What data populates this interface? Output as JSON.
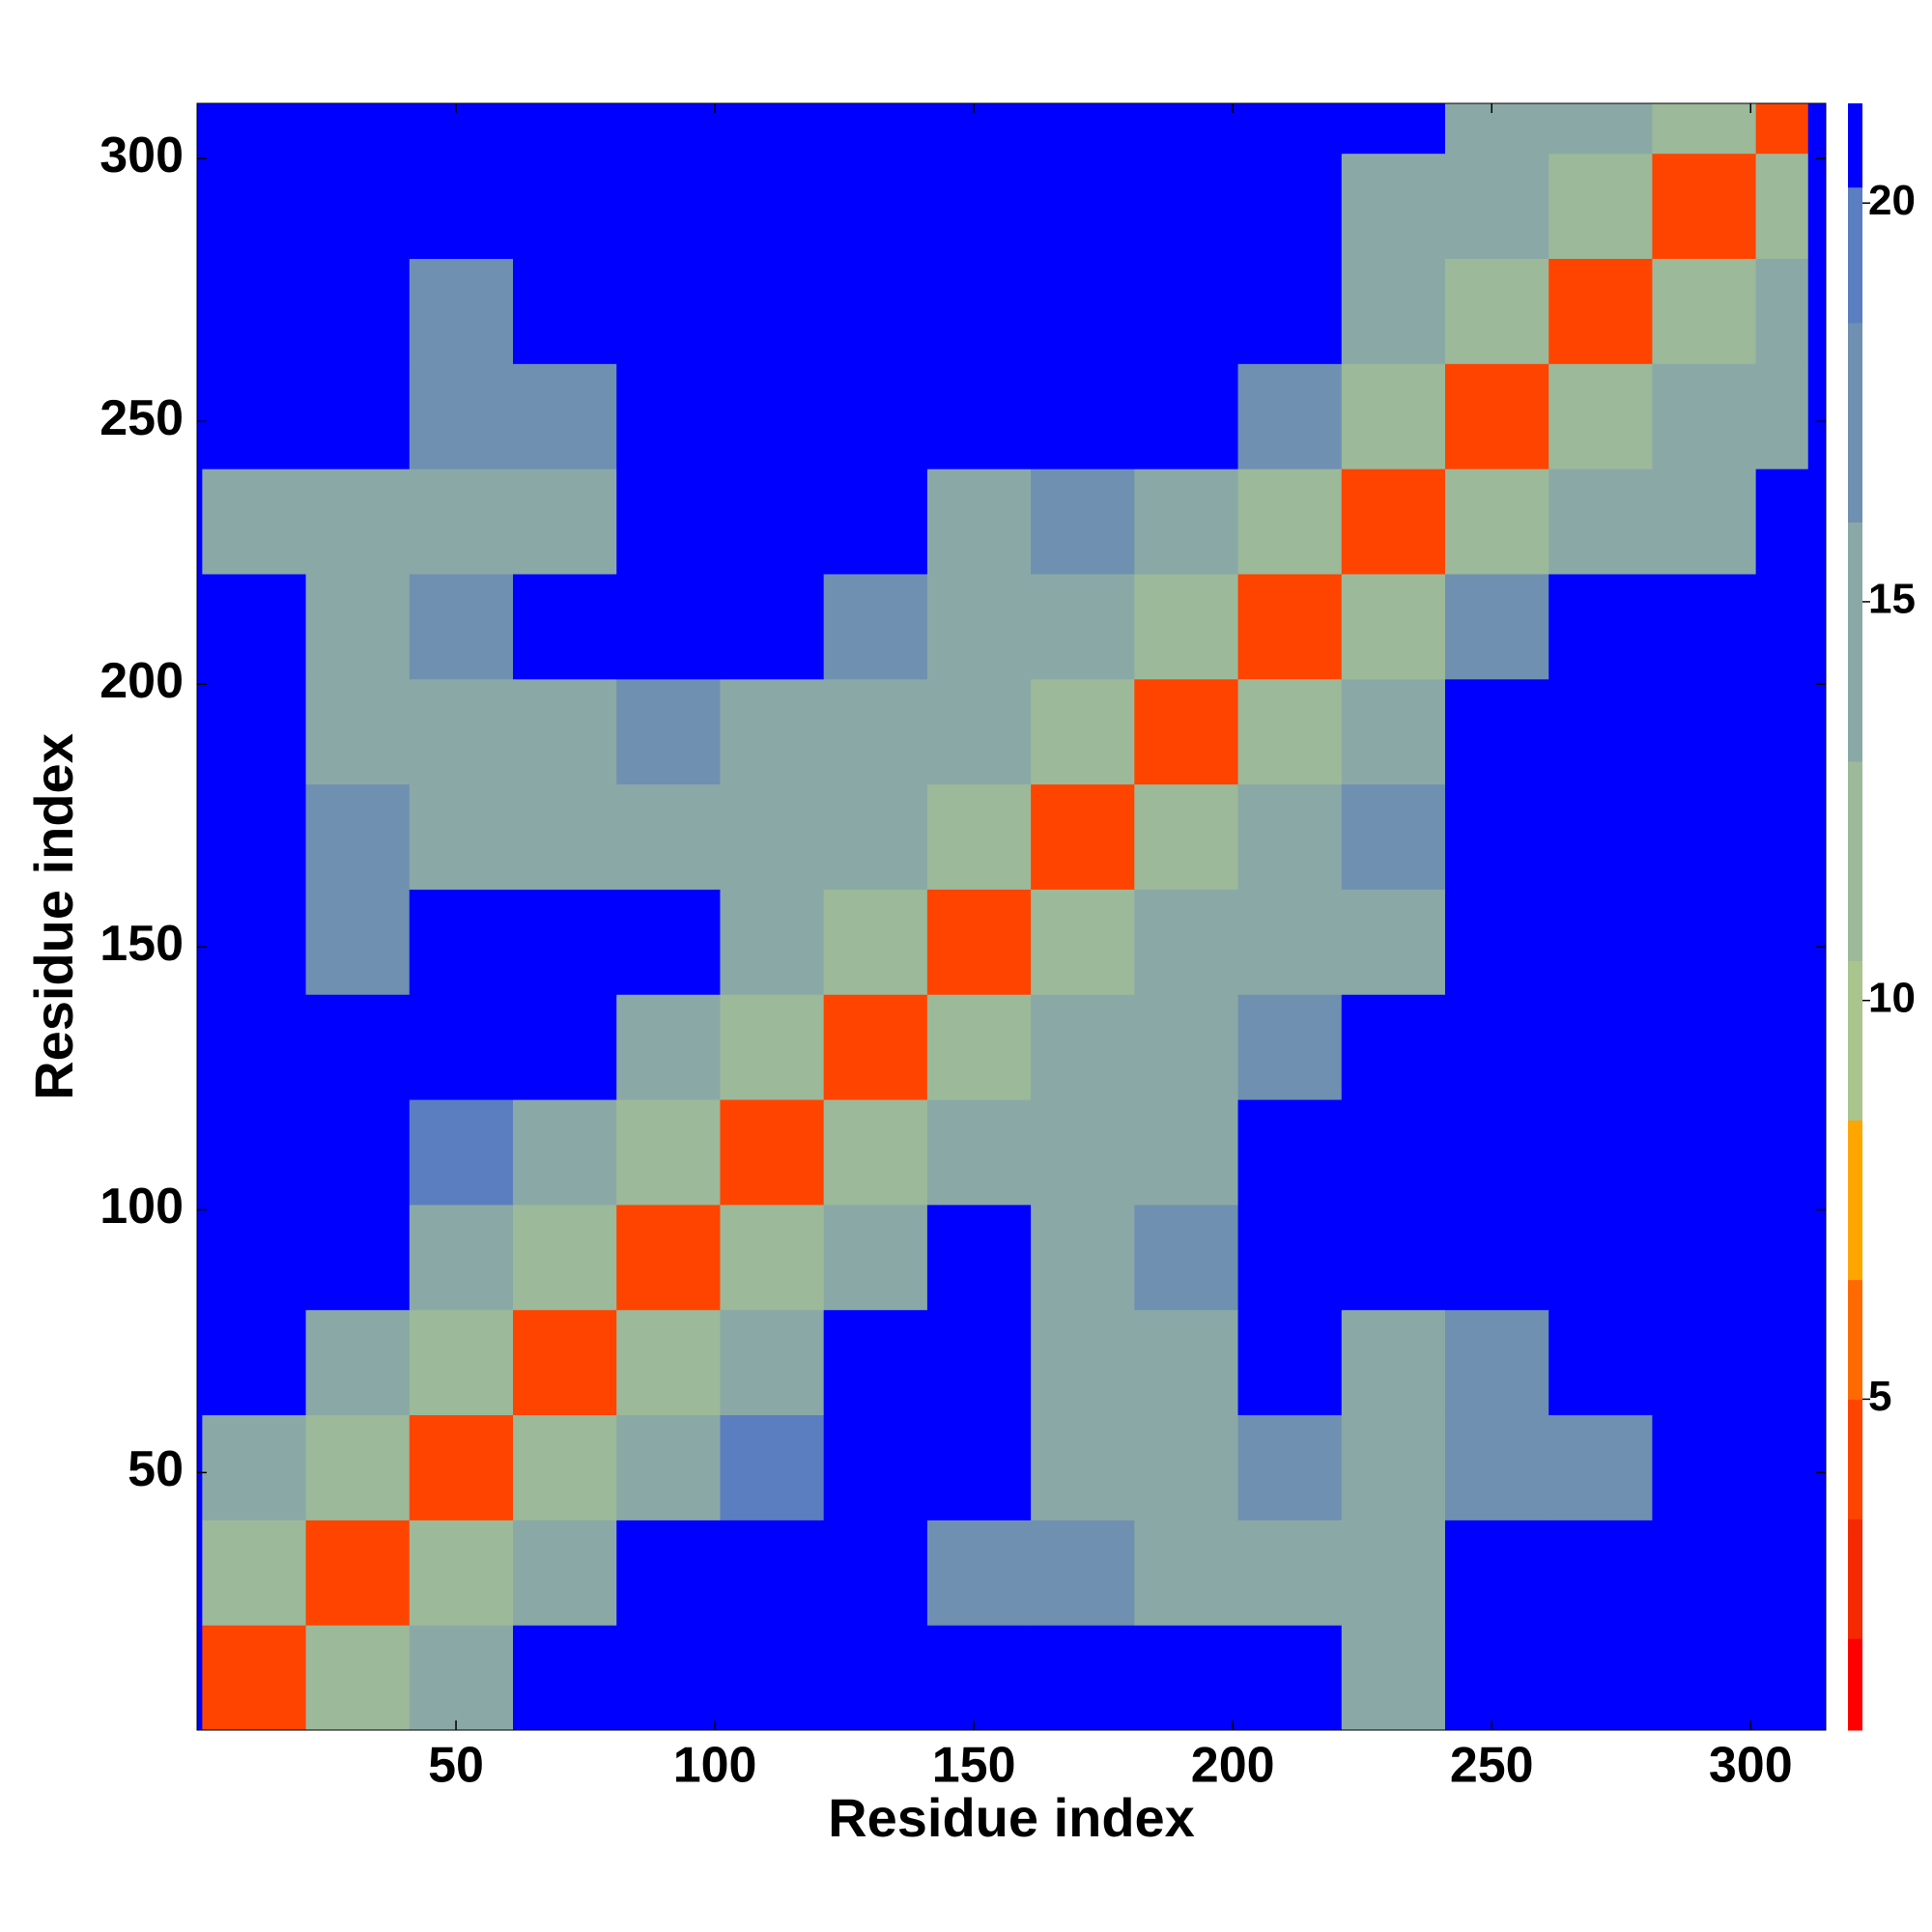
{
  "chart_data": {
    "type": "heatmap",
    "xlabel": "Residue index",
    "ylabel": "Residue index",
    "xlim": [
      0,
      314.5
    ],
    "ylim": [
      1,
      310.5
    ],
    "xticks": [
      50,
      100,
      150,
      200,
      250,
      300
    ],
    "yticks": [
      50,
      100,
      150,
      200,
      250,
      300
    ],
    "x_edges": [
      1,
      21,
      41,
      61,
      81,
      101,
      121,
      141,
      161,
      181,
      201,
      221,
      241,
      261,
      281,
      301,
      311
    ],
    "y_edges": [
      1,
      21,
      41,
      61,
      81,
      101,
      121,
      141,
      161,
      181,
      201,
      221,
      241,
      261,
      281,
      301,
      311
    ],
    "z": [
      [
        4,
        12,
        14,
        21,
        21,
        21,
        21,
        21,
        21,
        21,
        21,
        16,
        21,
        21,
        21,
        21
      ],
      [
        12,
        4,
        12,
        14,
        21,
        21,
        21,
        17,
        17,
        16,
        16,
        15,
        21,
        21,
        21,
        21
      ],
      [
        14,
        12,
        4,
        12,
        15,
        19,
        21,
        21,
        16,
        16,
        17,
        15,
        17,
        18,
        21,
        21
      ],
      [
        21,
        14,
        12,
        4,
        12,
        15,
        21,
        21,
        16,
        16,
        21,
        16,
        18,
        21,
        21,
        21
      ],
      [
        21,
        21,
        15,
        12,
        4,
        12,
        15,
        21,
        16,
        17,
        21,
        21,
        21,
        21,
        21,
        21
      ],
      [
        21,
        21,
        19,
        15,
        12,
        4,
        12,
        16,
        15,
        16,
        21,
        21,
        21,
        21,
        21,
        21
      ],
      [
        21,
        21,
        21,
        21,
        15,
        12,
        4,
        12,
        15,
        16,
        18,
        21,
        21,
        21,
        21,
        21
      ],
      [
        21,
        17,
        21,
        21,
        21,
        16,
        12,
        4,
        12,
        15,
        16,
        16,
        21,
        21,
        21,
        21
      ],
      [
        21,
        17,
        16,
        16,
        16,
        15,
        15,
        12,
        4,
        12,
        15,
        17,
        21,
        21,
        21,
        21
      ],
      [
        21,
        16,
        16,
        16,
        17,
        16,
        16,
        15,
        12,
        4,
        12,
        15,
        21,
        21,
        21,
        21
      ],
      [
        21,
        16,
        17,
        21,
        21,
        21,
        18,
        16,
        15,
        12,
        4,
        12,
        17,
        21,
        21,
        21
      ],
      [
        16,
        15,
        15,
        16,
        21,
        21,
        21,
        16,
        17,
        15,
        12,
        4,
        12,
        16,
        16,
        21
      ],
      [
        21,
        21,
        17,
        18,
        21,
        21,
        21,
        21,
        21,
        21,
        17,
        12,
        4,
        12,
        15,
        16
      ],
      [
        21,
        21,
        18,
        21,
        21,
        21,
        21,
        21,
        21,
        21,
        21,
        16,
        12,
        4,
        12,
        15
      ],
      [
        21,
        21,
        21,
        21,
        21,
        21,
        21,
        21,
        21,
        21,
        21,
        16,
        15,
        12,
        4,
        12
      ],
      [
        21,
        21,
        21,
        21,
        21,
        21,
        21,
        21,
        21,
        21,
        21,
        21,
        16,
        15,
        12,
        4
      ]
    ],
    "clim": [
      0.85,
      21.25
    ],
    "cticks": [
      5,
      10,
      15,
      20
    ],
    "colorscale": [
      [
        2,
        "#ff0000"
      ],
      [
        3.5,
        "#f52a00"
      ],
      [
        5,
        "#ff4400"
      ],
      [
        6.5,
        "#ff6a00"
      ],
      [
        8.5,
        "#ffa500"
      ],
      [
        10.5,
        "#a9c48c"
      ],
      [
        13,
        "#9cb99a"
      ],
      [
        16,
        "#8aa9a6"
      ],
      [
        18.5,
        "#6f90b0"
      ],
      [
        20.2,
        "#5a7ec0"
      ],
      [
        21.25,
        "#0000ff"
      ]
    ],
    "background": "#0000ff"
  }
}
